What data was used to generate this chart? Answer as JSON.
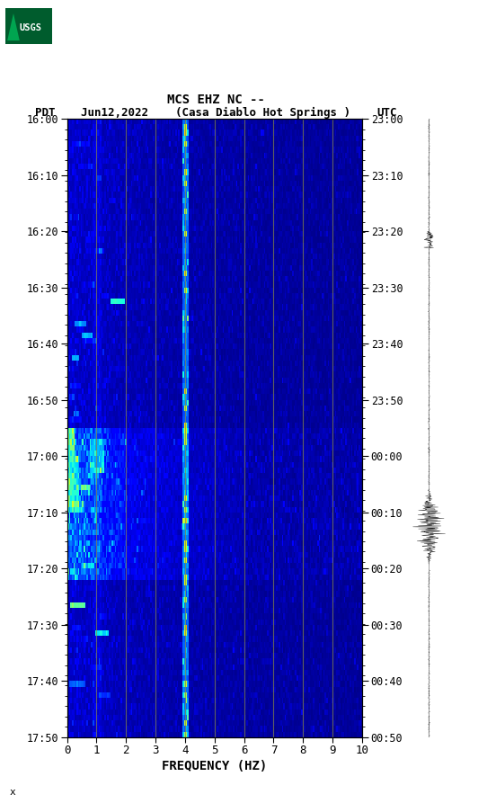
{
  "title_line1": "MCS EHZ NC --",
  "title_line2_left": "PDT",
  "title_line2_date": "Jun12,2022",
  "title_line2_loc": "(Casa Diablo Hot Springs )",
  "title_line2_right": "UTC",
  "xlabel": "FREQUENCY (HZ)",
  "freq_min": 0,
  "freq_max": 10,
  "left_yticks": [
    "16:00",
    "16:10",
    "16:20",
    "16:30",
    "16:40",
    "16:50",
    "17:00",
    "17:10",
    "17:20",
    "17:30",
    "17:40",
    "17:50"
  ],
  "right_yticks": [
    "23:00",
    "23:10",
    "23:20",
    "23:30",
    "23:40",
    "23:50",
    "00:00",
    "00:10",
    "00:20",
    "00:30",
    "00:40",
    "00:50"
  ],
  "xticks": [
    0,
    1,
    2,
    3,
    4,
    5,
    6,
    7,
    8,
    9,
    10
  ],
  "vertical_lines_freq": [
    1,
    2,
    3,
    4,
    5,
    6,
    7,
    8,
    9
  ],
  "vline_color": "#888844",
  "vline_alpha": 0.7,
  "fig_bg": "#ffffff",
  "spectrogram_seed": 42,
  "num_time_bins": 110,
  "num_freq_bins": 200,
  "colormap": "jet",
  "bottom_note": "x"
}
